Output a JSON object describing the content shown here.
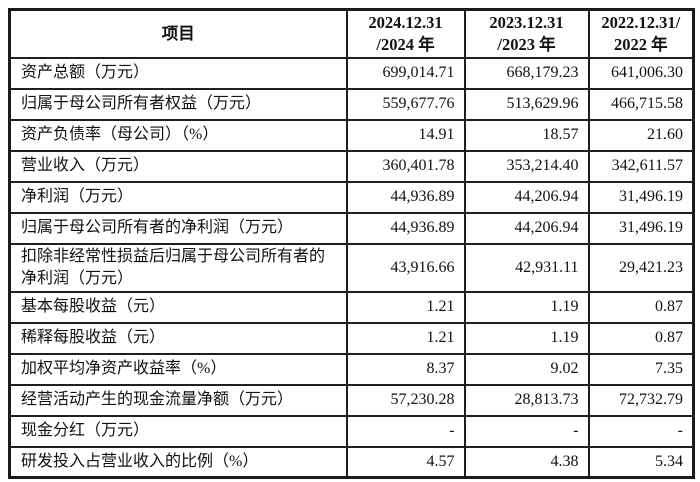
{
  "colors": {
    "background": "#ffffff",
    "border": "#1f1f1f",
    "text": "#111111"
  },
  "table": {
    "header": {
      "item_label": "项目",
      "cols": [
        {
          "line1": "2024.12.31",
          "line2": "/2024 年"
        },
        {
          "line1": "2023.12.31",
          "line2": "/2023 年"
        },
        {
          "line1": "2022.12.31/",
          "line2": "2022 年"
        }
      ]
    },
    "rows": [
      {
        "label": "资产总额（万元）",
        "values": [
          "699,014.71",
          "668,179.23",
          "641,006.30"
        ]
      },
      {
        "label": "归属于母公司所有者权益（万元）",
        "values": [
          "559,677.76",
          "513,629.96",
          "466,715.58"
        ]
      },
      {
        "label": "资产负债率（母公司）（%）",
        "values": [
          "14.91",
          "18.57",
          "21.60"
        ]
      },
      {
        "label": "营业收入（万元）",
        "values": [
          "360,401.78",
          "353,214.40",
          "342,611.57"
        ]
      },
      {
        "label": "净利润（万元）",
        "values": [
          "44,936.89",
          "44,206.94",
          "31,496.19"
        ]
      },
      {
        "label": "归属于母公司所有者的净利润（万元）",
        "values": [
          "44,936.89",
          "44,206.94",
          "31,496.19"
        ]
      },
      {
        "label": "扣除非经常性损益后归属于母公司所有者的净利润（万元）",
        "values": [
          "43,916.66",
          "42,931.11",
          "29,421.23"
        ]
      },
      {
        "label": "基本每股收益（元）",
        "values": [
          "1.21",
          "1.19",
          "0.87"
        ]
      },
      {
        "label": "稀释每股收益（元）",
        "values": [
          "1.21",
          "1.19",
          "0.87"
        ]
      },
      {
        "label": "加权平均净资产收益率（%）",
        "values": [
          "8.37",
          "9.02",
          "7.35"
        ]
      },
      {
        "label": "经营活动产生的现金流量净额（万元）",
        "values": [
          "57,230.28",
          "28,813.73",
          "72,732.79"
        ]
      },
      {
        "label": "现金分红（万元）",
        "values": [
          "-",
          "-",
          "-"
        ]
      },
      {
        "label": "研发投入占营业收入的比例（%）",
        "values": [
          "4.57",
          "4.38",
          "5.34"
        ]
      }
    ]
  }
}
